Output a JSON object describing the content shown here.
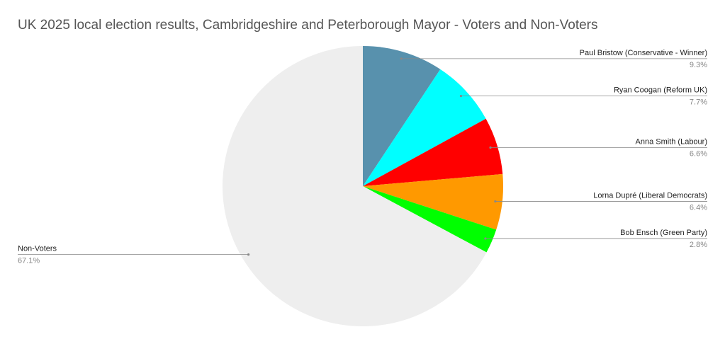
{
  "chart_data": {
    "type": "pie",
    "title": "UK 2025 local election results, Cambridgeshire and Peterborough Mayor - Voters and Non-Voters",
    "categories": [
      "Paul Bristow (Conservative - Winner)",
      "Ryan Coogan (Reform UK)",
      "Anna Smith (Labour)",
      "Lorna Dupré (Liberal Democrats)",
      "Bob Ensch (Green Party)",
      "Non-Voters"
    ],
    "values": [
      9.3,
      7.7,
      6.6,
      6.4,
      2.8,
      67.1
    ],
    "value_labels": [
      "9.3%",
      "7.7%",
      "6.6%",
      "6.4%",
      "2.8%",
      "67.1%"
    ],
    "colors": [
      "#5891ad",
      "#00ffff",
      "#ff0000",
      "#ff9900",
      "#00ff00",
      "#eeeeee"
    ]
  }
}
